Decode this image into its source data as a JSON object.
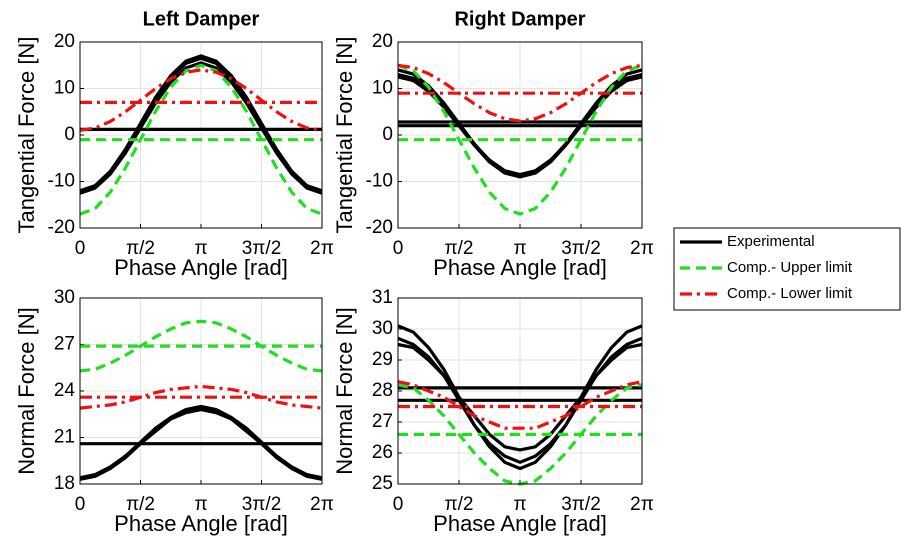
{
  "chart_data": [
    {
      "type": "line",
      "title": "Left Damper",
      "xlabel": "Phase Angle [rad]",
      "ylabel": "Tangential Force [N]",
      "x": [
        0,
        0.3927,
        0.7854,
        1.1781,
        1.5708,
        1.9635,
        2.3562,
        2.7489,
        3.1416,
        3.5343,
        3.927,
        4.3197,
        4.7124,
        5.1051,
        5.4978,
        5.8905,
        6.2832
      ],
      "xlim": [
        0,
        6.2832
      ],
      "xticks": [
        0,
        {
          "value": 1.5708,
          "label": "π/2"
        },
        {
          "value": 3.1416,
          "label": "π"
        },
        {
          "value": 4.7124,
          "label": "3π/2"
        },
        {
          "value": 6.2832,
          "label": "2π"
        }
      ],
      "ylim": [
        -20,
        20
      ],
      "yticks": [
        -20,
        -10,
        0,
        10,
        20
      ],
      "grid": true,
      "series": [
        {
          "name": "Experimental",
          "color": "#000000",
          "dash": "solid",
          "values": [
            -12.5,
            -11.4,
            -8.3,
            -3.6,
            2,
            7.6,
            12.3,
            15.4,
            16.5,
            15.4,
            12.3,
            7.6,
            2,
            -3.6,
            -8.3,
            -11.4,
            -12.5
          ]
        },
        {
          "name": "Experimental",
          "color": "#000000",
          "dash": "solid",
          "values": [
            -12.5,
            -11.4,
            -8.4,
            -3.9,
            1.5,
            6.9,
            11.4,
            14.4,
            15.5,
            14.4,
            11.4,
            6.9,
            1.5,
            -3.9,
            -8.4,
            -11.4,
            -12.5
          ]
        },
        {
          "name": "Experimental",
          "color": "#000000",
          "dash": "solid",
          "values": [
            -12.0,
            -10.9,
            -7.8,
            -3.1,
            2.5,
            8.1,
            12.8,
            15.9,
            17.0,
            15.9,
            12.8,
            8.1,
            2.5,
            -3.1,
            -7.8,
            -10.9,
            -12.0
          ]
        },
        {
          "name": "Experimental",
          "color": "#000000",
          "dash": "solid",
          "values": [
            1.2,
            1.2,
            1.2,
            1.2,
            1.2,
            1.2,
            1.2,
            1.2,
            1.2,
            1.2,
            1.2,
            1.2,
            1.2,
            1.2,
            1.2,
            1.2,
            1.2
          ]
        },
        {
          "name": "Comp.- Upper limit",
          "color": "#22dd22",
          "dash": "dash",
          "values": [
            -17,
            -15.8,
            -12.3,
            -7.1,
            -1,
            5.1,
            10.3,
            13.8,
            15,
            13.8,
            10.3,
            5.1,
            -1,
            -7.1,
            -12.3,
            -15.8,
            -17
          ]
        },
        {
          "name": "Comp.- Upper limit",
          "color": "#22dd22",
          "dash": "dash",
          "values": [
            -1,
            -1,
            -1,
            -1,
            -1,
            -1,
            -1,
            -1,
            -1,
            -1,
            -1,
            -1,
            -1,
            -1,
            -1,
            -1,
            -1
          ]
        },
        {
          "name": "Comp.- Lower limit",
          "color": "#ee1111",
          "dash": "dashdot",
          "values": [
            1.0,
            1.5,
            2.9,
            5.0,
            7.5,
            10.0,
            12.1,
            13.5,
            14.0,
            13.5,
            12.1,
            10.0,
            7.5,
            5.0,
            2.9,
            1.5,
            1.0
          ]
        },
        {
          "name": "Comp.- Lower limit",
          "color": "#ee1111",
          "dash": "dashdot",
          "values": [
            7,
            7,
            7,
            7,
            7,
            7,
            7,
            7,
            7,
            7,
            7,
            7,
            7,
            7,
            7,
            7,
            7
          ]
        }
      ]
    },
    {
      "type": "line",
      "title": "Right Damper",
      "xlabel": "Phase Angle [rad]",
      "ylabel": "Tangential Force [N]",
      "x": [
        0,
        0.3927,
        0.7854,
        1.1781,
        1.5708,
        1.9635,
        2.3562,
        2.7489,
        3.1416,
        3.5343,
        3.927,
        4.3197,
        4.7124,
        5.1051,
        5.4978,
        5.8905,
        6.2832
      ],
      "xlim": [
        0,
        6.2832
      ],
      "xticks": [
        0,
        {
          "value": 1.5708,
          "label": "π/2"
        },
        {
          "value": 3.1416,
          "label": "π"
        },
        {
          "value": 4.7124,
          "label": "3π/2"
        },
        {
          "value": 6.2832,
          "label": "2π"
        }
      ],
      "ylim": [
        -20,
        20
      ],
      "yticks": [
        -20,
        -10,
        0,
        10,
        20
      ],
      "grid": true,
      "series": [
        {
          "name": "Experimental",
          "color": "#000000",
          "dash": "solid",
          "values": [
            13,
            12.2,
            9.8,
            6.2,
            2,
            -2.2,
            -5.8,
            -8.2,
            -9,
            -8.2,
            -5.8,
            -2.2,
            2,
            6.2,
            9.8,
            12.2,
            13
          ]
        },
        {
          "name": "Experimental",
          "color": "#000000",
          "dash": "solid",
          "values": [
            14,
            13.1,
            10.6,
            6.9,
            2.5,
            -1.9,
            -5.6,
            -8.1,
            -9,
            -8.1,
            -5.6,
            -1.9,
            2.5,
            6.9,
            10.6,
            13.1,
            14
          ]
        },
        {
          "name": "Experimental",
          "color": "#000000",
          "dash": "solid",
          "values": [
            12.5,
            11.7,
            9.4,
            6.0,
            2,
            -2.0,
            -5.4,
            -7.7,
            -8.5,
            -7.7,
            -5.4,
            -2.0,
            2,
            6.0,
            9.4,
            11.7,
            12.5
          ]
        },
        {
          "name": "Experimental",
          "color": "#000000",
          "dash": "solid",
          "values": [
            2.8,
            2.8,
            2.8,
            2.8,
            2.8,
            2.8,
            2.8,
            2.8,
            2.8,
            2.8,
            2.8,
            2.8,
            2.8,
            2.8,
            2.8,
            2.8,
            2.8
          ]
        },
        {
          "name": "Experimental",
          "color": "#000000",
          "dash": "solid",
          "values": [
            2.0,
            2.0,
            2.0,
            2.0,
            2.0,
            2.0,
            2.0,
            2.0,
            2.0,
            2.0,
            2.0,
            2.0,
            2.0,
            2.0,
            2.0,
            2.0,
            2.0
          ]
        },
        {
          "name": "Comp.- Upper limit",
          "color": "#22dd22",
          "dash": "dash",
          "values": [
            15,
            13.8,
            10.3,
            5.1,
            -1,
            -7.1,
            -12.3,
            -15.8,
            -17,
            -15.8,
            -12.3,
            -7.1,
            -1,
            5.1,
            10.3,
            13.8,
            15
          ]
        },
        {
          "name": "Comp.- Upper limit",
          "color": "#22dd22",
          "dash": "dash",
          "values": [
            -1,
            -1,
            -1,
            -1,
            -1,
            -1,
            -1,
            -1,
            -1,
            -1,
            -1,
            -1,
            -1,
            -1,
            -1,
            -1,
            -1
          ]
        },
        {
          "name": "Comp.- Lower limit",
          "color": "#ee1111",
          "dash": "dashdot",
          "values": [
            15,
            14.5,
            13.2,
            11.3,
            9,
            6.7,
            4.8,
            3.5,
            3,
            3.5,
            4.8,
            6.7,
            9,
            11.3,
            13.2,
            14.5,
            15
          ]
        },
        {
          "name": "Comp.- Lower limit",
          "color": "#ee1111",
          "dash": "dashdot",
          "values": [
            9,
            9,
            9,
            9,
            9,
            9,
            9,
            9,
            9,
            9,
            9,
            9,
            9,
            9,
            9,
            9,
            9
          ]
        }
      ]
    },
    {
      "type": "line",
      "xlabel": "Phase Angle [rad]",
      "ylabel": "Normal Force [N]",
      "x": [
        0,
        0.3927,
        0.7854,
        1.1781,
        1.5708,
        1.9635,
        2.3562,
        2.7489,
        3.1416,
        3.5343,
        3.927,
        4.3197,
        4.7124,
        5.1051,
        5.4978,
        5.8905,
        6.2832
      ],
      "xlim": [
        0,
        6.2832
      ],
      "xticks": [
        0,
        {
          "value": 1.5708,
          "label": "π/2"
        },
        {
          "value": 3.1416,
          "label": "π"
        },
        {
          "value": 4.7124,
          "label": "3π/2"
        },
        {
          "value": 6.2832,
          "label": "2π"
        }
      ],
      "ylim": [
        18,
        30
      ],
      "yticks": [
        18,
        21,
        24,
        27,
        30
      ],
      "grid": true,
      "series": [
        {
          "name": "Experimental",
          "color": "#000000",
          "dash": "solid",
          "values": [
            18.3,
            18.5,
            19.0,
            19.7,
            20.6,
            21.5,
            22.2,
            22.7,
            22.9,
            22.7,
            22.2,
            21.5,
            20.6,
            19.7,
            19.0,
            18.5,
            18.3
          ]
        },
        {
          "name": "Experimental",
          "color": "#000000",
          "dash": "solid",
          "values": [
            18.4,
            18.6,
            19.0,
            19.8,
            20.6,
            21.4,
            22.2,
            22.6,
            22.8,
            22.6,
            22.2,
            21.4,
            20.6,
            19.8,
            19.0,
            18.6,
            18.4
          ]
        },
        {
          "name": "Experimental",
          "color": "#000000",
          "dash": "solid",
          "values": [
            18.4,
            18.6,
            19.1,
            19.8,
            20.7,
            21.6,
            22.3,
            22.8,
            23.0,
            22.8,
            22.3,
            21.6,
            20.7,
            19.8,
            19.1,
            18.6,
            18.4
          ]
        },
        {
          "name": "Experimental",
          "color": "#000000",
          "dash": "solid",
          "values": [
            20.6,
            20.6,
            20.6,
            20.6,
            20.6,
            20.6,
            20.6,
            20.6,
            20.6,
            20.6,
            20.6,
            20.6,
            20.6,
            20.6,
            20.6,
            20.6,
            20.6
          ]
        },
        {
          "name": "Comp.- Upper limit",
          "color": "#22dd22",
          "dash": "dash",
          "values": [
            25.3,
            25.4,
            25.8,
            26.3,
            26.9,
            27.5,
            28.0,
            28.4,
            28.5,
            28.4,
            28.0,
            27.5,
            26.9,
            26.3,
            25.8,
            25.4,
            25.3
          ]
        },
        {
          "name": "Comp.- Upper limit",
          "color": "#22dd22",
          "dash": "dash",
          "values": [
            26.9,
            26.9,
            26.9,
            26.9,
            26.9,
            26.9,
            26.9,
            26.9,
            26.9,
            26.9,
            26.9,
            26.9,
            26.9,
            26.9,
            26.9,
            26.9,
            26.9
          ]
        },
        {
          "name": "Comp.- Lower limit",
          "color": "#ee1111",
          "dash": "dashdot",
          "values": [
            22.9,
            23.0,
            23.1,
            23.3,
            23.6,
            23.9,
            24.1,
            24.2,
            24.3,
            24.2,
            24.1,
            23.9,
            23.6,
            23.3,
            23.1,
            23.0,
            22.9
          ]
        },
        {
          "name": "Comp.- Lower limit",
          "color": "#ee1111",
          "dash": "dashdot",
          "values": [
            23.6,
            23.6,
            23.6,
            23.6,
            23.6,
            23.6,
            23.6,
            23.6,
            23.6,
            23.6,
            23.6,
            23.6,
            23.6,
            23.6,
            23.6,
            23.6,
            23.6
          ]
        }
      ]
    },
    {
      "type": "line",
      "xlabel": "Phase Angle [rad]",
      "ylabel": "Normal Force [N]",
      "x": [
        0,
        0.3927,
        0.7854,
        1.1781,
        1.5708,
        1.9635,
        2.3562,
        2.7489,
        3.1416,
        3.5343,
        3.927,
        4.3197,
        4.7124,
        5.1051,
        5.4978,
        5.8905,
        6.2832
      ],
      "xlim": [
        0,
        6.2832
      ],
      "xticks": [
        0,
        {
          "value": 1.5708,
          "label": "π/2"
        },
        {
          "value": 3.1416,
          "label": "π"
        },
        {
          "value": 4.7124,
          "label": "3π/2"
        },
        {
          "value": 6.2832,
          "label": "2π"
        }
      ],
      "ylim": [
        25,
        31
      ],
      "yticks": [
        25,
        26,
        27,
        28,
        29,
        30,
        31
      ],
      "grid": true,
      "series": [
        {
          "name": "Experimental",
          "color": "#000000",
          "dash": "solid",
          "values": [
            30.1,
            29.9,
            29.4,
            28.7,
            27.8,
            26.9,
            26.2,
            25.7,
            25.5,
            25.7,
            26.2,
            26.9,
            27.8,
            28.7,
            29.4,
            29.9,
            30.1
          ]
        },
        {
          "name": "Experimental",
          "color": "#000000",
          "dash": "solid",
          "values": [
            29.7,
            29.5,
            29.1,
            28.5,
            27.7,
            26.9,
            26.3,
            25.9,
            25.7,
            25.9,
            26.3,
            26.9,
            27.7,
            28.5,
            29.1,
            29.5,
            29.7
          ]
        },
        {
          "name": "Experimental",
          "color": "#000000",
          "dash": "solid",
          "values": [
            29.5,
            29.4,
            29.0,
            28.5,
            27.8,
            27.2,
            26.6,
            26.2,
            26.1,
            26.2,
            26.6,
            27.2,
            27.8,
            28.5,
            29.0,
            29.4,
            29.5
          ]
        },
        {
          "name": "Experimental",
          "color": "#000000",
          "dash": "solid",
          "values": [
            28.1,
            28.1,
            28.1,
            28.1,
            28.1,
            28.1,
            28.1,
            28.1,
            28.1,
            28.1,
            28.1,
            28.1,
            28.1,
            28.1,
            28.1,
            28.1,
            28.1
          ]
        },
        {
          "name": "Experimental",
          "color": "#000000",
          "dash": "solid",
          "values": [
            27.7,
            27.7,
            27.7,
            27.7,
            27.7,
            27.7,
            27.7,
            27.7,
            27.7,
            27.7,
            27.7,
            27.7,
            27.7,
            27.7,
            27.7,
            27.7,
            27.7
          ]
        },
        {
          "name": "Comp.- Upper limit",
          "color": "#22dd22",
          "dash": "dash",
          "values": [
            28.2,
            28.1,
            27.7,
            27.2,
            26.6,
            26.0,
            25.5,
            25.1,
            25.0,
            25.1,
            25.5,
            26.0,
            26.6,
            27.2,
            27.7,
            28.1,
            28.2
          ]
        },
        {
          "name": "Comp.- Upper limit",
          "color": "#22dd22",
          "dash": "dash",
          "values": [
            26.6,
            26.6,
            26.6,
            26.6,
            26.6,
            26.6,
            26.6,
            26.6,
            26.6,
            26.6,
            26.6,
            26.6,
            26.6,
            26.6,
            26.6,
            26.6,
            26.6
          ]
        },
        {
          "name": "Comp.- Lower limit",
          "color": "#ee1111",
          "dash": "dashdot",
          "values": [
            28.3,
            28.2,
            28.0,
            27.8,
            27.5,
            27.2,
            27.0,
            26.8,
            26.8,
            26.8,
            27.0,
            27.2,
            27.5,
            27.8,
            28.0,
            28.2,
            28.3
          ]
        },
        {
          "name": "Comp.- Lower limit",
          "color": "#ee1111",
          "dash": "dashdot",
          "values": [
            27.5,
            27.5,
            27.5,
            27.5,
            27.5,
            27.5,
            27.5,
            27.5,
            27.5,
            27.5,
            27.5,
            27.5,
            27.5,
            27.5,
            27.5,
            27.5,
            27.5
          ]
        }
      ]
    }
  ]
}
